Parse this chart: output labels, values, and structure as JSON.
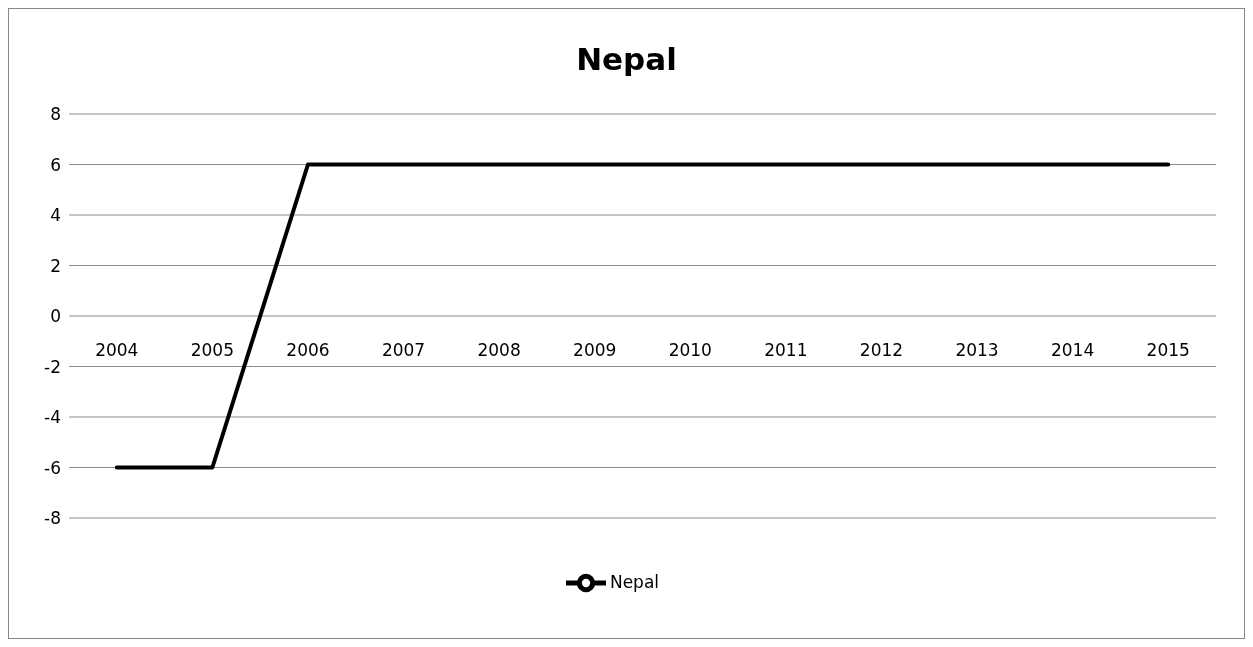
{
  "chart_data": {
    "type": "line",
    "title": "Nepal",
    "categories": [
      "2004",
      "2005",
      "2006",
      "2007",
      "2008",
      "2009",
      "2010",
      "2011",
      "2012",
      "2013",
      "2014",
      "2015"
    ],
    "series": [
      {
        "name": "Nepal",
        "color": "#000000",
        "values": [
          -6,
          -6,
          6,
          6,
          6,
          6,
          6,
          6,
          6,
          6,
          6,
          6
        ]
      }
    ],
    "ylim": [
      -8,
      8
    ],
    "yticks": [
      -8,
      -6,
      -4,
      -2,
      0,
      2,
      4,
      6,
      8
    ],
    "grid": "y",
    "legend": "bottom",
    "marker": "none",
    "line_style": "solid"
  }
}
